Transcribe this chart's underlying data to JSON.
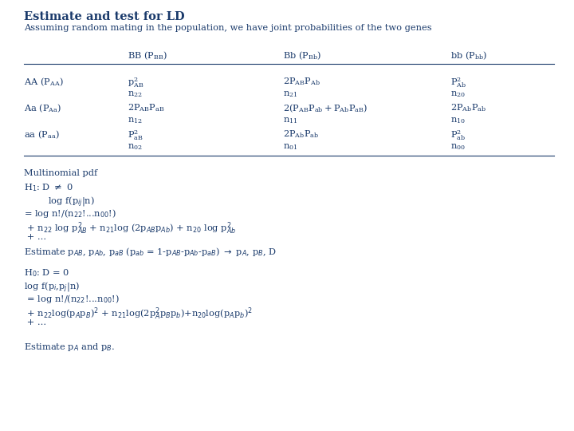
{
  "title": "Estimate and test for LD",
  "subtitle": "Assuming random mating in the population, we have joint probabilities of the two genes",
  "bg_color": "#ffffff",
  "text_color": "#1a3a6b",
  "fig_width": 7.2,
  "fig_height": 5.4,
  "dpi": 100
}
